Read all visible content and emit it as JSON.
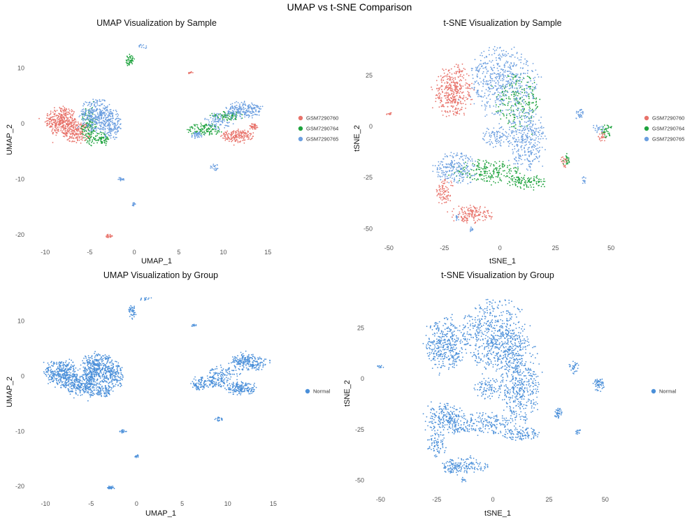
{
  "figure_title": "UMAP vs t-SNE Comparison",
  "colors": {
    "GSM7290760": "#E8736B",
    "GSM7290764": "#1FA33E",
    "GSM7290765": "#6C9FE0",
    "Normal": "#4A8FD9"
  },
  "chart_data": [
    {
      "type": "scatter",
      "title": "UMAP Visualization by Sample",
      "xlabel": "UMAP_1",
      "ylabel": "UMAP_2",
      "xlim": [
        -11,
        16
      ],
      "ylim": [
        -21.5,
        15
      ],
      "xticks": [
        -10,
        -5,
        0,
        5,
        10,
        15
      ],
      "yticks": [
        10,
        0,
        -10,
        -20
      ],
      "grid": false,
      "legend_position": "right",
      "color_by": "sample",
      "series": [
        {
          "name": "GSM7290760",
          "clusters": [
            {
              "cx": -8.2,
              "cy": 0.5,
              "rx": 1.6,
              "ry": 2.4,
              "n": 340
            },
            {
              "cx": -6.5,
              "cy": -1.5,
              "rx": 1.4,
              "ry": 1.8,
              "n": 200
            },
            {
              "cx": 11.5,
              "cy": -2.2,
              "rx": 1.6,
              "ry": 1.1,
              "n": 170
            },
            {
              "cx": 13.4,
              "cy": -0.5,
              "rx": 0.6,
              "ry": 0.5,
              "n": 40
            },
            {
              "cx": -2.8,
              "cy": -20.2,
              "rx": 0.4,
              "ry": 0.3,
              "n": 25
            },
            {
              "cx": 6.3,
              "cy": 9.2,
              "rx": 0.3,
              "ry": 0.2,
              "n": 12
            }
          ]
        },
        {
          "name": "GSM7290764",
          "clusters": [
            {
              "cx": -5.1,
              "cy": -0.5,
              "rx": 0.8,
              "ry": 3.4,
              "n": 150
            },
            {
              "cx": -3.6,
              "cy": -2.7,
              "rx": 0.8,
              "ry": 1.2,
              "n": 70
            },
            {
              "cx": 8.0,
              "cy": -1.0,
              "rx": 2.0,
              "ry": 1.0,
              "n": 120
            },
            {
              "cx": 10.5,
              "cy": 1.5,
              "rx": 1.8,
              "ry": 0.8,
              "n": 90
            },
            {
              "cx": -0.5,
              "cy": 11.5,
              "rx": 0.4,
              "ry": 1.1,
              "n": 45
            }
          ]
        },
        {
          "name": "GSM7290765",
          "clusters": [
            {
              "cx": -4.3,
              "cy": 1.5,
              "rx": 1.7,
              "ry": 2.8,
              "n": 330
            },
            {
              "cx": -2.6,
              "cy": 0.0,
              "rx": 1.1,
              "ry": 2.6,
              "n": 170
            },
            {
              "cx": 12.3,
              "cy": 2.5,
              "rx": 1.9,
              "ry": 1.4,
              "n": 220
            },
            {
              "cx": 9.5,
              "cy": 0.5,
              "rx": 1.5,
              "ry": 1.4,
              "n": 90
            },
            {
              "cx": 7.0,
              "cy": -2.0,
              "rx": 0.8,
              "ry": 0.6,
              "n": 40
            },
            {
              "cx": -1.5,
              "cy": -10.0,
              "rx": 0.4,
              "ry": 0.3,
              "n": 20
            },
            {
              "cx": 0.0,
              "cy": -14.5,
              "rx": 0.2,
              "ry": 0.3,
              "n": 12
            },
            {
              "cx": 9.0,
              "cy": -7.8,
              "rx": 0.5,
              "ry": 0.6,
              "n": 20
            },
            {
              "cx": 1.0,
              "cy": 14.0,
              "rx": 0.6,
              "ry": 0.4,
              "n": 12
            }
          ]
        }
      ]
    },
    {
      "type": "scatter",
      "title": "t-SNE Visualization by Sample",
      "xlabel": "tSNE_1",
      "ylabel": "tSNE_2",
      "xlim": [
        -52,
        55
      ],
      "ylim": [
        -55,
        42
      ],
      "xticks": [
        -50,
        -25,
        0,
        25,
        50
      ],
      "yticks": [
        25,
        0,
        -25,
        -50
      ],
      "grid": false,
      "legend_position": "right",
      "color_by": "sample",
      "series": [
        {
          "name": "GSM7290760",
          "clusters": [
            {
              "cx": -21,
              "cy": 17,
              "rx": 8,
              "ry": 12,
              "n": 380
            },
            {
              "cx": -13,
              "cy": -43,
              "rx": 10,
              "ry": 4,
              "n": 150
            },
            {
              "cx": -25,
              "cy": -32,
              "rx": 4,
              "ry": 6,
              "n": 80
            },
            {
              "cx": 29,
              "cy": -17,
              "rx": 1.5,
              "ry": 2.5,
              "n": 25
            },
            {
              "cx": 46,
              "cy": -5,
              "rx": 2,
              "ry": 2,
              "n": 25
            },
            {
              "cx": -50,
              "cy": 6,
              "rx": 1.5,
              "ry": 0.6,
              "n": 10
            }
          ]
        },
        {
          "name": "GSM7290764",
          "clusters": [
            {
              "cx": 8,
              "cy": 12,
              "rx": 10,
              "ry": 12,
              "n": 220
            },
            {
              "cx": -5,
              "cy": -22,
              "rx": 14,
              "ry": 5,
              "n": 200
            },
            {
              "cx": 12,
              "cy": -27,
              "rx": 8,
              "ry": 3,
              "n": 110
            },
            {
              "cx": 48,
              "cy": -2,
              "rx": 2.5,
              "ry": 3,
              "n": 35
            },
            {
              "cx": 30,
              "cy": -16,
              "rx": 1.5,
              "ry": 2.5,
              "n": 20
            }
          ]
        },
        {
          "name": "GSM7290765",
          "clusters": [
            {
              "cx": 1,
              "cy": 22,
              "rx": 14,
              "ry": 16,
              "n": 520
            },
            {
              "cx": 12,
              "cy": -6,
              "rx": 8,
              "ry": 14,
              "n": 340
            },
            {
              "cx": -20,
              "cy": -20,
              "rx": 9,
              "ry": 7,
              "n": 220
            },
            {
              "cx": -2,
              "cy": -5,
              "rx": 6,
              "ry": 5,
              "n": 90
            },
            {
              "cx": 36,
              "cy": 6,
              "rx": 2,
              "ry": 3,
              "n": 30
            },
            {
              "cx": 38,
              "cy": -26,
              "rx": 1,
              "ry": 2,
              "n": 15
            },
            {
              "cx": 44,
              "cy": -1,
              "rx": 3,
              "ry": 2,
              "n": 20
            },
            {
              "cx": -19,
              "cy": -45,
              "rx": 1,
              "ry": 2,
              "n": 12
            },
            {
              "cx": -13,
              "cy": -50,
              "rx": 1,
              "ry": 1.5,
              "n": 10
            }
          ]
        }
      ]
    },
    {
      "type": "scatter",
      "title": "UMAP Visualization by Group",
      "xlabel": "UMAP_1",
      "ylabel": "UMAP_2",
      "xlim": [
        -11,
        16
      ],
      "ylim": [
        -21.5,
        15
      ],
      "xticks": [
        -10,
        -5,
        0,
        5,
        10,
        15
      ],
      "yticks": [
        10,
        0,
        -10,
        -20
      ],
      "grid": false,
      "legend_position": "right",
      "color_by": "group",
      "series": [
        {
          "name": "Normal",
          "clusters": [
            {
              "cx": -8.2,
              "cy": 0.5,
              "rx": 1.6,
              "ry": 2.4,
              "n": 340
            },
            {
              "cx": -6.5,
              "cy": -1.5,
              "rx": 1.4,
              "ry": 1.8,
              "n": 200
            },
            {
              "cx": -5.1,
              "cy": -0.5,
              "rx": 0.8,
              "ry": 3.4,
              "n": 150
            },
            {
              "cx": -4.3,
              "cy": 1.5,
              "rx": 1.7,
              "ry": 2.8,
              "n": 330
            },
            {
              "cx": -2.6,
              "cy": 0.0,
              "rx": 1.1,
              "ry": 2.6,
              "n": 170
            },
            {
              "cx": -3.6,
              "cy": -2.7,
              "rx": 0.8,
              "ry": 1.2,
              "n": 70
            },
            {
              "cx": 11.5,
              "cy": -2.2,
              "rx": 1.6,
              "ry": 1.1,
              "n": 170
            },
            {
              "cx": 12.3,
              "cy": 2.5,
              "rx": 1.9,
              "ry": 1.4,
              "n": 220
            },
            {
              "cx": 9.5,
              "cy": 0.5,
              "rx": 1.5,
              "ry": 1.4,
              "n": 90
            },
            {
              "cx": 8.0,
              "cy": -1.0,
              "rx": 2.0,
              "ry": 1.0,
              "n": 120
            },
            {
              "cx": 7.0,
              "cy": -2.0,
              "rx": 0.8,
              "ry": 0.6,
              "n": 40
            },
            {
              "cx": -0.5,
              "cy": 11.5,
              "rx": 0.4,
              "ry": 1.1,
              "n": 45
            },
            {
              "cx": 1.0,
              "cy": 14.0,
              "rx": 0.6,
              "ry": 0.4,
              "n": 12
            },
            {
              "cx": 6.3,
              "cy": 9.2,
              "rx": 0.3,
              "ry": 0.2,
              "n": 12
            },
            {
              "cx": -1.5,
              "cy": -10.0,
              "rx": 0.4,
              "ry": 0.3,
              "n": 20
            },
            {
              "cx": 0.0,
              "cy": -14.5,
              "rx": 0.2,
              "ry": 0.3,
              "n": 12
            },
            {
              "cx": 9.0,
              "cy": -7.8,
              "rx": 0.5,
              "ry": 0.6,
              "n": 20
            },
            {
              "cx": -2.8,
              "cy": -20.2,
              "rx": 0.4,
              "ry": 0.3,
              "n": 25
            }
          ]
        }
      ]
    },
    {
      "type": "scatter",
      "title": "t-SNE Visualization by Group",
      "xlabel": "tSNE_1",
      "ylabel": "tSNE_2",
      "xlim": [
        -52,
        55
      ],
      "ylim": [
        -55,
        42
      ],
      "xticks": [
        -50,
        -25,
        0,
        25,
        50
      ],
      "yticks": [
        25,
        0,
        -25,
        -50
      ],
      "grid": false,
      "legend_position": "right",
      "color_by": "group",
      "series": [
        {
          "name": "Normal",
          "clusters": [
            {
              "cx": -21,
              "cy": 17,
              "rx": 8,
              "ry": 12,
              "n": 380
            },
            {
              "cx": 1,
              "cy": 22,
              "rx": 14,
              "ry": 16,
              "n": 520
            },
            {
              "cx": 8,
              "cy": 12,
              "rx": 10,
              "ry": 12,
              "n": 220
            },
            {
              "cx": 12,
              "cy": -6,
              "rx": 8,
              "ry": 14,
              "n": 340
            },
            {
              "cx": -2,
              "cy": -5,
              "rx": 6,
              "ry": 5,
              "n": 90
            },
            {
              "cx": -20,
              "cy": -20,
              "rx": 9,
              "ry": 7,
              "n": 220
            },
            {
              "cx": -5,
              "cy": -22,
              "rx": 14,
              "ry": 5,
              "n": 200
            },
            {
              "cx": 12,
              "cy": -27,
              "rx": 8,
              "ry": 3,
              "n": 110
            },
            {
              "cx": -13,
              "cy": -43,
              "rx": 10,
              "ry": 4,
              "n": 150
            },
            {
              "cx": -25,
              "cy": -32,
              "rx": 4,
              "ry": 6,
              "n": 80
            },
            {
              "cx": 29,
              "cy": -17,
              "rx": 1.5,
              "ry": 2.5,
              "n": 40
            },
            {
              "cx": 47,
              "cy": -3,
              "rx": 2.5,
              "ry": 3,
              "n": 55
            },
            {
              "cx": 36,
              "cy": 6,
              "rx": 2,
              "ry": 3,
              "n": 30
            },
            {
              "cx": 38,
              "cy": -26,
              "rx": 1,
              "ry": 2,
              "n": 15
            },
            {
              "cx": -50,
              "cy": 6,
              "rx": 1.5,
              "ry": 0.6,
              "n": 10
            },
            {
              "cx": -19,
              "cy": -45,
              "rx": 1,
              "ry": 2,
              "n": 12
            },
            {
              "cx": -13,
              "cy": -50,
              "rx": 1,
              "ry": 1.5,
              "n": 10
            }
          ]
        }
      ]
    }
  ]
}
